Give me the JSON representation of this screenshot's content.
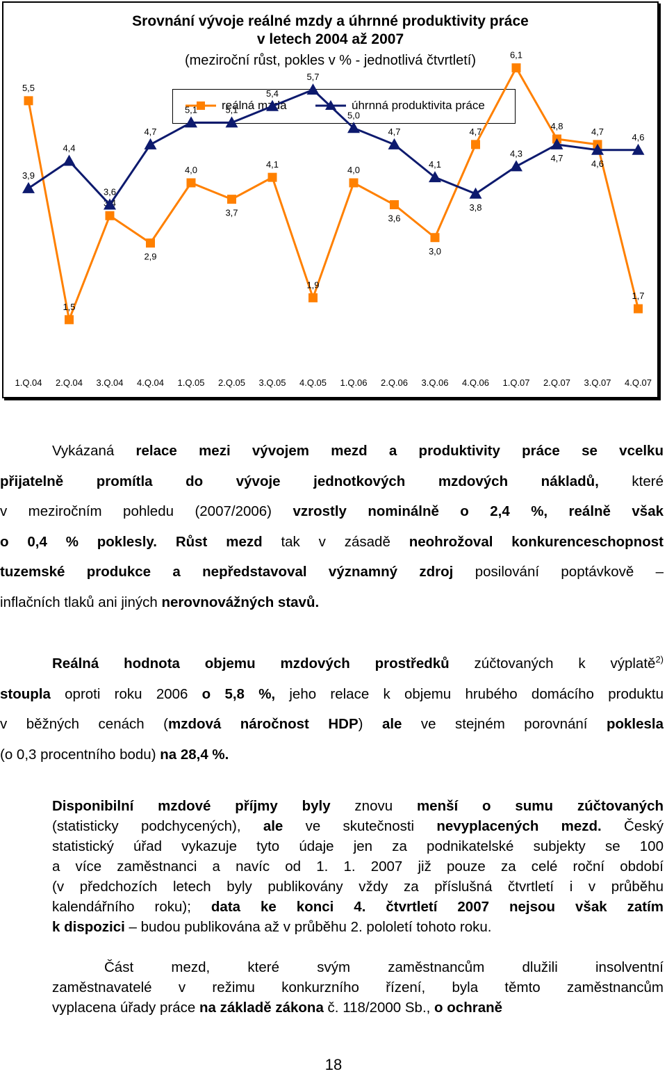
{
  "chart_data": {
    "type": "line",
    "title": "Srovnání vývoje reálné mzdy a úhrnné produktivity práce v letech 2004 až 2007",
    "title_line1": "Srovnání vývoje reálné mzdy a úhrnné produktivity práce",
    "title_line2": "v letech 2004 až 2007",
    "subtitle": "(meziroční růst, pokles v % - jednotlivá čtvrtletí)",
    "categories": [
      "1.Q.04",
      "2.Q.04",
      "3.Q.04",
      "4.Q.04",
      "1.Q.05",
      "2.Q.05",
      "3.Q.05",
      "4.Q.05",
      "1.Q.06",
      "2.Q.06",
      "3.Q.06",
      "4.Q.06",
      "1.Q.07",
      "2.Q.07",
      "3.Q.07",
      "4.Q.07"
    ],
    "series": [
      {
        "name": "reálná mzda",
        "color": "#ff8000",
        "marker": "square",
        "values": [
          5.5,
          1.5,
          3.4,
          2.9,
          4.0,
          3.7,
          4.1,
          1.9,
          4.0,
          3.6,
          3.0,
          4.7,
          6.1,
          4.8,
          4.7,
          1.7
        ],
        "labels": [
          "5,5",
          "1,5",
          "3,4",
          "2,9",
          "4,0",
          "3,7",
          "4,1",
          "1,9",
          "4,0",
          "3,6",
          "3,0",
          "4,7",
          "6,1",
          "4,8",
          "4,7",
          "1,7"
        ]
      },
      {
        "name": "úhrnná produktivita práce",
        "color": "#0d1a6e",
        "marker": "triangle",
        "values": [
          3.9,
          4.4,
          3.6,
          4.7,
          5.1,
          5.1,
          5.4,
          5.7,
          5.0,
          4.7,
          4.1,
          3.8,
          4.3,
          4.7,
          4.6,
          4.6
        ],
        "labels": [
          "3,9",
          "4,4",
          "3,6",
          "4,7",
          "5,1",
          "5,1",
          "5,4",
          "5,7",
          "5,0",
          "4,7",
          "4,1",
          "3,8",
          "4,3",
          "4,7",
          "4,6",
          "4,6"
        ]
      }
    ],
    "legend_position": "top",
    "grid": false
  },
  "legend": {
    "wage_label": "reálná mzda",
    "productivity_label": "úhrnná produktivita práce"
  },
  "text": {
    "p1": [
      [
        "Vykázaná ",
        {
          "b": "relace mezi vývojem mezd a produktivity práce se vcelku"
        }
      ],
      [
        {
          "b": "přijatelně promítla do vývoje jednotkových mzdových nákladů,"
        },
        " které"
      ],
      [
        "v meziročním pohledu (2007/2006) ",
        {
          "b": "vzrostly nominálně o 2,4 %, reálně však"
        }
      ],
      [
        {
          "b": "o 0,4 % poklesly."
        },
        " ",
        {
          "b": "Růst mezd"
        },
        " tak v zásadě ",
        {
          "b": "neohrožoval konkurenceschopnost"
        }
      ],
      [
        {
          "b": "tuzemské produkce a nepředstavoval významný zdroj"
        },
        " posilování poptávkově –"
      ],
      [
        "inflačních tlaků ani jiných ",
        {
          "b": "nerovnovážných stavů."
        }
      ]
    ],
    "p2": [
      [
        {
          "b": "Reálná hodnota objemu mzdových prostředků"
        },
        " zúčtovaných k výplatě",
        {
          "sup": "2)"
        }
      ],
      [
        {
          "b": "stoupla"
        },
        " oproti roku 2006 ",
        {
          "b": "o 5,8 %,"
        },
        " jeho relace k objemu hrubého domácího produktu"
      ],
      [
        "v běžných cenách (",
        {
          "b": "mzdová náročnost HDP"
        },
        ") ",
        {
          "b": "ale"
        },
        " ve stejném porovnání ",
        {
          "b": "poklesla"
        }
      ],
      [
        "(o 0,3 procentního bodu) ",
        {
          "b": "na 28,4 %."
        }
      ]
    ],
    "p3": [
      [
        {
          "b": "Disponibilní mzdové příjmy byly"
        },
        " znovu ",
        {
          "b": "menší o sumu zúčtovaných"
        }
      ],
      [
        "(statisticky podchycených), ",
        {
          "b": "ale"
        },
        " ve skutečnosti ",
        {
          "b": "nevyplacených mezd."
        },
        " Český"
      ],
      [
        "statistický úřad vykazuje tyto údaje jen za podnikatelské subjekty se 100"
      ],
      [
        "a více zaměstnanci a navíc od 1. 1. 2007 již pouze za celé roční období"
      ],
      [
        "(v předchozích letech byly publikovány vždy za příslušná čtvrtletí i v průběhu"
      ],
      [
        "kalendářního roku); ",
        {
          "b": "data ke konci 4. čtvrtletí 2007 nejsou však zatím"
        }
      ],
      [
        {
          "b": "k dispozici"
        },
        " – budou publikována až v průběhu 2. pololetí tohoto roku."
      ]
    ],
    "p4": [
      [
        "Část mezd, které svým zaměstnancům dlužili insolventní"
      ],
      [
        "zaměstnavatelé v režimu konkurzního řízení, byla těmto zaměstnancům"
      ],
      [
        "vyplacena úřady práce ",
        {
          "b": "na základě zákona"
        },
        " č. 118/2000 Sb., ",
        {
          "b": "o ochraně"
        }
      ]
    ]
  },
  "page_number": "18"
}
